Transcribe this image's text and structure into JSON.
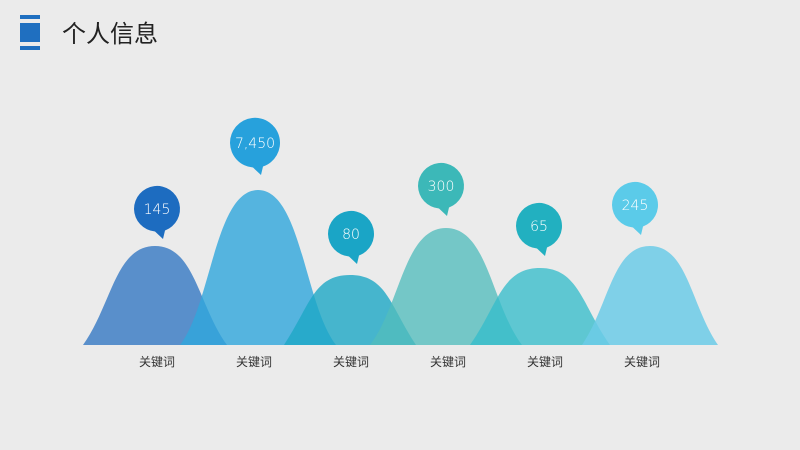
{
  "header": {
    "title": "个人信息"
  },
  "items": [
    {
      "value": "145",
      "label": "关键词"
    },
    {
      "value": "7,450",
      "label": "关键词"
    },
    {
      "value": "80",
      "label": "关键词"
    },
    {
      "value": "300",
      "label": "关键词"
    },
    {
      "value": "65",
      "label": "关键词"
    },
    {
      "value": "245",
      "label": "关键词"
    }
  ]
}
